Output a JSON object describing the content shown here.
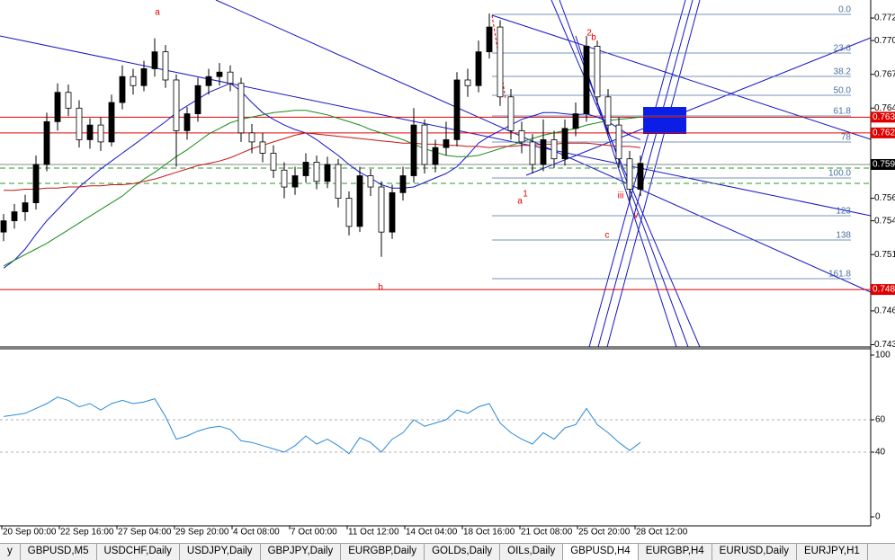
{
  "chart_data": {
    "type": "candlestick",
    "ylim": [
      0.7428,
      0.7736
    ],
    "yticks": [
      0.772,
      {
        "value": 0.77,
        "label": "0.770"
      },
      0.767,
      0.764,
      0.756,
      0.754,
      0.751,
      0.746,
      0.743
    ],
    "up_color": "#000000",
    "down_color": "#ffffff",
    "candles": {
      "open": [
        0.753,
        0.754,
        0.7548,
        0.7556,
        0.759,
        0.7628,
        0.7654,
        0.764,
        0.7612,
        0.7625,
        0.761,
        0.7645,
        0.7668,
        0.766,
        0.7675,
        0.769,
        0.7665,
        0.762,
        0.7635,
        0.766,
        0.7668,
        0.7672,
        0.7662,
        0.7618,
        0.761,
        0.76,
        0.7585,
        0.757,
        0.758,
        0.7592,
        0.7575,
        0.759,
        0.756,
        0.7535,
        0.758,
        0.757,
        0.753,
        0.7565,
        0.758,
        0.7625,
        0.759,
        0.7605,
        0.7612,
        0.7665,
        0.766,
        0.769,
        0.7712,
        0.765,
        0.762,
        0.761,
        0.759,
        0.7612,
        0.7595,
        0.7622,
        0.7635,
        0.7695,
        0.765,
        0.7625,
        0.7595,
        0.7568
      ],
      "high": [
        0.7546,
        0.7555,
        0.7563,
        0.7598,
        0.7636,
        0.7662,
        0.7661,
        0.7647,
        0.7631,
        0.7632,
        0.7652,
        0.7678,
        0.7675,
        0.7682,
        0.7702,
        0.7696,
        0.767,
        0.7641,
        0.7667,
        0.7675,
        0.768,
        0.7678,
        0.7667,
        0.7626,
        0.7618,
        0.7607,
        0.7592,
        0.7588,
        0.76,
        0.7598,
        0.7597,
        0.7595,
        0.7566,
        0.7588,
        0.7586,
        0.7575,
        0.7572,
        0.7588,
        0.764,
        0.763,
        0.7612,
        0.7628,
        0.7672,
        0.7675,
        0.77,
        0.7724,
        0.7718,
        0.7657,
        0.7628,
        0.7617,
        0.763,
        0.762,
        0.763,
        0.7645,
        0.7704,
        0.77,
        0.7657,
        0.7632,
        0.7602,
        0.7598
      ],
      "low": [
        0.7522,
        0.7533,
        0.754,
        0.755,
        0.7584,
        0.762,
        0.7633,
        0.7605,
        0.7604,
        0.7602,
        0.7606,
        0.7639,
        0.7652,
        0.7655,
        0.7668,
        0.7658,
        0.7588,
        0.7612,
        0.7628,
        0.7652,
        0.766,
        0.7655,
        0.761,
        0.76,
        0.7592,
        0.7578,
        0.756,
        0.7563,
        0.7574,
        0.7568,
        0.7569,
        0.7552,
        0.7527,
        0.753,
        0.7562,
        0.7508,
        0.7524,
        0.7558,
        0.7574,
        0.7582,
        0.7583,
        0.7598,
        0.7606,
        0.765,
        0.7654,
        0.7684,
        0.7642,
        0.7612,
        0.76,
        0.7582,
        0.7584,
        0.7587,
        0.7589,
        0.7615,
        0.7628,
        0.7643,
        0.7617,
        0.7587,
        0.7556,
        0.7562
      ],
      "close": [
        0.754,
        0.7548,
        0.7556,
        0.759,
        0.7628,
        0.7654,
        0.764,
        0.7612,
        0.7625,
        0.761,
        0.7645,
        0.7668,
        0.766,
        0.7675,
        0.769,
        0.7665,
        0.762,
        0.7635,
        0.766,
        0.7668,
        0.7672,
        0.7662,
        0.7618,
        0.761,
        0.76,
        0.7585,
        0.757,
        0.758,
        0.7592,
        0.7575,
        0.759,
        0.756,
        0.7535,
        0.758,
        0.757,
        0.753,
        0.7565,
        0.758,
        0.7625,
        0.759,
        0.7605,
        0.7612,
        0.7665,
        0.766,
        0.769,
        0.7712,
        0.765,
        0.762,
        0.761,
        0.759,
        0.7612,
        0.7595,
        0.7622,
        0.7635,
        0.7695,
        0.765,
        0.7625,
        0.7595,
        0.7568,
        0.7591
      ]
    },
    "moving_averages": [
      {
        "color": "#1515c8",
        "values": [
          0.7498,
          0.7505,
          0.7515,
          0.7528,
          0.754,
          0.755,
          0.756,
          0.757,
          0.7578,
          0.7586,
          0.7593,
          0.76,
          0.7607,
          0.7614,
          0.7621,
          0.7628,
          0.7636,
          0.7642,
          0.7648,
          0.7654,
          0.7658,
          0.7662,
          0.7655,
          0.7645,
          0.7636,
          0.763,
          0.7625,
          0.7621,
          0.7618,
          0.7612,
          0.7605,
          0.7598,
          0.759,
          0.7583,
          0.7578,
          0.7572,
          0.7569,
          0.7569,
          0.757,
          0.7574,
          0.7578,
          0.7582,
          0.7588,
          0.7598,
          0.7609,
          0.7615,
          0.762,
          0.7625,
          0.763,
          0.7633,
          0.7636,
          0.7636,
          0.7635,
          0.7634,
          0.7635,
          0.7632,
          0.7628,
          0.7622,
          0.7616,
          0.7612
        ]
      },
      {
        "color": "#1a8a1a",
        "values": [
          0.75,
          0.7505,
          0.751,
          0.7515,
          0.752,
          0.7526,
          0.7532,
          0.7538,
          0.7544,
          0.755,
          0.7556,
          0.7562,
          0.757,
          0.7577,
          0.7583,
          0.759,
          0.7597,
          0.7603,
          0.761,
          0.7617,
          0.7622,
          0.7627,
          0.763,
          0.7632,
          0.7634,
          0.7636,
          0.7637,
          0.7638,
          0.7638,
          0.7636,
          0.7634,
          0.7631,
          0.7628,
          0.7625,
          0.7621,
          0.7618,
          0.7615,
          0.7612,
          0.7608,
          0.7604,
          0.7601,
          0.7598,
          0.7597,
          0.7597,
          0.7598,
          0.7601,
          0.7604,
          0.7607,
          0.761,
          0.7613,
          0.7616,
          0.7618,
          0.762,
          0.7622,
          0.7625,
          0.7627,
          0.7629,
          0.763,
          0.7631,
          0.7632
        ]
      },
      {
        "color": "#c81414",
        "values": [
          0.7567,
          0.7567,
          0.7568,
          0.7568,
          0.7569,
          0.7569,
          0.757,
          0.757,
          0.7571,
          0.7571,
          0.7572,
          0.7572,
          0.7573,
          0.7575,
          0.7577,
          0.758,
          0.7583,
          0.7586,
          0.7589,
          0.7591,
          0.7593,
          0.7596,
          0.76,
          0.7604,
          0.7607,
          0.761,
          0.7613,
          0.7616,
          0.7618,
          0.7617,
          0.7616,
          0.7615,
          0.7614,
          0.7613,
          0.7612,
          0.7611,
          0.761,
          0.7609,
          0.7609,
          0.7608,
          0.7608,
          0.7607,
          0.7607,
          0.7606,
          0.7606,
          0.7605,
          0.7606,
          0.7606,
          0.7607,
          0.7607,
          0.7608,
          0.7608,
          0.7609,
          0.7609,
          0.7609,
          0.7608,
          0.7607,
          0.7606,
          0.7606,
          0.7605
        ]
      }
    ],
    "price_lines": [
      {
        "value": 0.7632,
        "label": "0.763",
        "color": "#e00000"
      },
      {
        "value": 0.7618,
        "label": "0.762",
        "color": "#e00000"
      },
      {
        "value": 0.759,
        "label": "0.759",
        "color": "#000000"
      },
      {
        "value": 0.7479,
        "label": "0.748",
        "color": "#e00000"
      }
    ],
    "fib_levels": [
      "0.0",
      "23.6",
      "38.2",
      "50.0",
      "61.8",
      "78",
      "100.0",
      "123",
      "138",
      "161.8"
    ],
    "wave_labels": [
      "a",
      "2",
      "b",
      "a",
      "1",
      "iii",
      "c",
      "b",
      "v"
    ],
    "x_labels": [
      "20 Sep 00:00",
      "22 Sep 16:00",
      "27 Sep 04:00",
      "29 Sep 20:00",
      "4 Oct 08:00",
      "7 Oct 00:00",
      "11 Oct 12:00",
      "14 Oct 04:00",
      "18 Oct 16:00",
      "21 Oct 08:00",
      "25 Oct 20:00",
      "28 Oct 12:00"
    ],
    "rsi": {
      "color": "#2a8ad8",
      "ylim": [
        0,
        100
      ],
      "yticks": [
        100,
        60,
        40,
        0
      ],
      "values": [
        62,
        63,
        64,
        67,
        70,
        74,
        72,
        68,
        70,
        66,
        70,
        72,
        70,
        71,
        73,
        62,
        48,
        50,
        53,
        55,
        56,
        54,
        47,
        46,
        44,
        42,
        40,
        44,
        50,
        45,
        48,
        44,
        39,
        49,
        46,
        40,
        48,
        52,
        60,
        56,
        58,
        60,
        66,
        64,
        68,
        70,
        58,
        52,
        48,
        45,
        52,
        48,
        55,
        57,
        67,
        57,
        52,
        46,
        41,
        46
      ]
    }
  },
  "tabs": [
    "y",
    "GBPUSD,M5",
    "USDCHF,Daily",
    "USDJPY,Daily",
    "GBPJPY,Daily",
    "EURGBP,Daily",
    "GOLDs,Daily",
    "OILs,Daily",
    "GBPUSD,H4",
    "EURGBP,H4",
    "EURUSD,Daily",
    "EURJPY,H1"
  ]
}
